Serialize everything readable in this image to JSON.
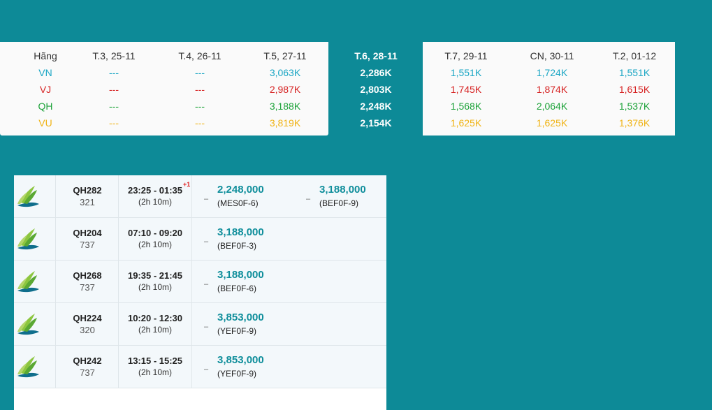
{
  "matrix": {
    "header_airline": "Hãng",
    "airlines": [
      "VN",
      "VJ",
      "QH",
      "VU"
    ],
    "selected_index": 3,
    "columns": [
      {
        "date": "T.3, 25-11",
        "prices": [
          "---",
          "---",
          "---",
          "---"
        ]
      },
      {
        "date": "T.4, 26-11",
        "prices": [
          "---",
          "---",
          "---",
          "---"
        ]
      },
      {
        "date": "T.5, 27-11",
        "prices": [
          "3,063K",
          "2,987K",
          "3,188K",
          "3,819K"
        ]
      },
      {
        "date": "T.6, 28-11",
        "prices": [
          "2,286K",
          "2,803K",
          "2,248K",
          "2,154K"
        ]
      },
      {
        "date": "T.7, 29-11",
        "prices": [
          "1,551K",
          "1,745K",
          "1,568K",
          "1,625K"
        ]
      },
      {
        "date": "CN, 30-11",
        "prices": [
          "1,724K",
          "1,874K",
          "2,064K",
          "1,625K"
        ]
      },
      {
        "date": "T.2, 01-12",
        "prices": [
          "1,551K",
          "1,615K",
          "1,537K",
          "1,376K"
        ]
      }
    ],
    "colors": {
      "VN": "#1ba6c4",
      "VJ": "#d62222",
      "QH": "#1fa33b",
      "VU": "#f0b417"
    }
  },
  "flights": [
    {
      "number": "QH282",
      "aircraft": "321",
      "time": "23:25 - 01:35",
      "next_day": "+1",
      "duration": "(2h 10m)",
      "fares": [
        {
          "sep": "–",
          "price": "2,248,000",
          "code": "(MES0F-6)"
        },
        {
          "sep": "–",
          "price": "3,188,000",
          "code": "(BEF0F-9)"
        }
      ]
    },
    {
      "number": "QH204",
      "aircraft": "737",
      "time": "07:10 - 09:20",
      "next_day": "",
      "duration": "(2h 10m)",
      "fares": [
        {
          "sep": "–",
          "price": "3,188,000",
          "code": "(BEF0F-3)"
        }
      ]
    },
    {
      "number": "QH268",
      "aircraft": "737",
      "time": "19:35 - 21:45",
      "next_day": "",
      "duration": "(2h 10m)",
      "fares": [
        {
          "sep": "–",
          "price": "3,188,000",
          "code": "(BEF0F-6)"
        }
      ]
    },
    {
      "number": "QH224",
      "aircraft": "320",
      "time": "10:20 - 12:30",
      "next_day": "",
      "duration": "(2h 10m)",
      "fares": [
        {
          "sep": "–",
          "price": "3,853,000",
          "code": "(YEF0F-9)"
        }
      ]
    },
    {
      "number": "QH242",
      "aircraft": "737",
      "time": "13:15 - 15:25",
      "next_day": "",
      "duration": "(2h 10m)",
      "fares": [
        {
          "sep": "–",
          "price": "3,853,000",
          "code": "(YEF0F-9)"
        }
      ]
    }
  ],
  "icons": {
    "airline_logo": "bamboo-airways-logo-icon"
  }
}
